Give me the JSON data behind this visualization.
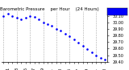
{
  "title": "Barometric Pressure    per Hour    (24 Hours)",
  "bg_color": "#ffffff",
  "dot_color": "#0000ff",
  "grid_color": "#aaaaaa",
  "legend_color": "#0000ff",
  "hours": [
    0,
    1,
    2,
    3,
    4,
    5,
    6,
    7,
    8,
    9,
    10,
    11,
    12,
    13,
    14,
    15,
    16,
    17,
    18,
    19,
    20,
    21,
    22,
    23
  ],
  "pressure": [
    30.1,
    30.14,
    30.11,
    30.08,
    30.06,
    30.08,
    30.11,
    30.09,
    30.05,
    30.01,
    29.98,
    29.95,
    29.91,
    29.88,
    29.83,
    29.79,
    29.74,
    29.69,
    29.64,
    29.59,
    29.54,
    29.5,
    29.46,
    29.43
  ],
  "ylim_min": 29.4,
  "ylim_max": 30.18,
  "ytick_values": [
    29.4,
    29.5,
    29.6,
    29.7,
    29.8,
    29.9,
    30.0,
    30.1
  ],
  "ytick_labels": [
    "29.40",
    "29.50",
    "29.60",
    "29.70",
    "29.80",
    "29.90",
    "30.00",
    "30.10"
  ],
  "grid_hours": [
    0,
    3,
    6,
    9,
    12,
    15,
    18,
    21
  ],
  "tick_label_size": 3.5,
  "title_size": 4.0
}
